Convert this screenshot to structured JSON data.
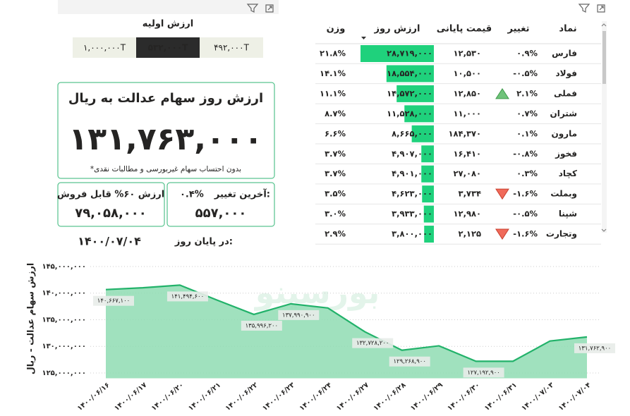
{
  "initial_value": {
    "title": "ارزش اولیه",
    "options": [
      "۱,۰۰۰,۰۰۰T",
      "۵۳۲,۰۰۰T",
      "۴۹۲,۰۰۰T"
    ],
    "selected": 1
  },
  "value_card": {
    "title": "ارزش روز سهام عدالت به ریال",
    "value": "۱۳۱,۷۶۳,۰۰۰",
    "note": "*بدون احتساب سهام غیربورسی و مطالبات نقدی"
  },
  "sellable_card": {
    "title": "ارزش ۶۰% قابل فروش",
    "value": "۷۹,۰۵۸,۰۰۰"
  },
  "change_card": {
    "title": "آخرین تغییر:",
    "change": "۰.۴%",
    "value": "۵۵۷,۰۰۰"
  },
  "end_of_day": {
    "label": "در پایان روز:",
    "date": "۱۴۰۰/۰۷/۰۴"
  },
  "table": {
    "headers": {
      "symbol": "نماد",
      "change": "تغییر",
      "price": "قیمت پایانی",
      "value": "ارزش روز",
      "weight": "وزن"
    },
    "bar_color": "#1fd17c",
    "rows": [
      {
        "symbol": "فارس",
        "change": "۰.۹%",
        "price": "۱۲,۵۳۰",
        "value": 28719000,
        "value_label": "۲۸,۷۱۹,۰۰۰",
        "weight": "۲۱.۸%"
      },
      {
        "symbol": "فولاد",
        "change": "-۰.۵%",
        "price": "۱۰,۵۰۰",
        "value": 18554000,
        "value_label": "۱۸,۵۵۴,۰۰۰",
        "weight": "۱۴.۱%"
      },
      {
        "symbol": "فملی",
        "change": "۲.۱%",
        "price": "۱۲,۸۵۰",
        "value": 14572000,
        "value_label": "۱۴,۵۷۲,۰۰۰",
        "weight": "۱۱.۱%",
        "trend": "up"
      },
      {
        "symbol": "شتران",
        "change": "۰.۷%",
        "price": "۱۱,۰۰۰",
        "value": 11528000,
        "value_label": "۱۱,۵۲۸,۰۰۰",
        "weight": "۸.۷%"
      },
      {
        "symbol": "مارون",
        "change": "۰.۱%",
        "price": "۱۸۴,۳۷۰",
        "value": 8665000,
        "value_label": "۸,۶۶۵,۰۰۰",
        "weight": "۶.۶%"
      },
      {
        "symbol": "فخوز",
        "change": "-۰.۸%",
        "price": "۱۶,۴۱۰",
        "value": 4907000,
        "value_label": "۴,۹۰۷,۰۰۰",
        "weight": "۳.۷%"
      },
      {
        "symbol": "کچاد",
        "change": "۰.۳%",
        "price": "۲۷,۰۸۰",
        "value": 4901000,
        "value_label": "۴,۹۰۱,۰۰۰",
        "weight": "۳.۷%"
      },
      {
        "symbol": "وبملت",
        "change": "-۱.۶%",
        "price": "۳,۷۳۴",
        "value": 4623000,
        "value_label": "۴,۶۲۳,۰۰۰",
        "weight": "۳.۵%",
        "trend": "down"
      },
      {
        "symbol": "شپنا",
        "change": "-۰.۵%",
        "price": "۱۲,۹۸۰",
        "value": 3933000,
        "value_label": "۳,۹۳۳,۰۰۰",
        "weight": "۳.۰%"
      },
      {
        "symbol": "وتجارت",
        "change": "-۱.۶%",
        "price": "۲,۱۲۵",
        "value": 3800000,
        "value_label": "۳,۸۰۰,۰۰۰",
        "weight": "۲.۹%",
        "trend": "down"
      }
    ]
  },
  "chart_data": {
    "type": "area",
    "y_label": "ارزش سهام عدالت - ریال",
    "watermark": "بورسینو",
    "categories": [
      "۱۴۰۰/۰۶/۱۶",
      "۱۴۰۰/۰۶/۱۷",
      "۱۴۰۰/۰۶/۲۰",
      "۱۴۰۰/۰۶/۲۱",
      "۱۴۰۰/۰۶/۲۲",
      "۱۴۰۰/۰۶/۲۳",
      "۱۴۰۰/۰۶/۲۴",
      "۱۴۰۰/۰۶/۲۷",
      "۱۴۰۰/۰۶/۲۸",
      "۱۴۰۰/۰۶/۲۹",
      "۱۴۰۰/۰۶/۳۰",
      "۱۴۰۰/۰۶/۳۱",
      "۱۴۰۰/۰۷/۰۳",
      "۱۴۰۰/۰۷/۰۴"
    ],
    "values": [
      140667100,
      141000000,
      141494600,
      138700000,
      135996200,
      137990900,
      137200000,
      132728200,
      129268900,
      130100000,
      127192900,
      127200000,
      131000000,
      131762900
    ],
    "value_labels": [
      "۱۴۰,۶۶۷,۱۰۰",
      null,
      "۱۴۱,۴۹۴,۶۰۰",
      null,
      "۱۳۵,۹۹۶,۲۰۰",
      "۱۳۷,۹۹۰,۹۰۰",
      null,
      "۱۳۲,۷۲۸,۲۰۰",
      "۱۲۹,۲۶۸,۹۰۰",
      null,
      "۱۲۷,۱۹۲,۹۰۰",
      null,
      null,
      "۱۳۱,۷۶۲,۹۰۰"
    ],
    "ylim": [
      124000000,
      146000000
    ],
    "yticks": [
      {
        "value": 125000000,
        "label": "۱۲۵,۰۰۰,۰۰۰"
      },
      {
        "value": 130000000,
        "label": "۱۳۰,۰۰۰,۰۰۰"
      },
      {
        "value": 135000000,
        "label": "۱۳۵,۰۰۰,۰۰۰"
      },
      {
        "value": 140000000,
        "label": "۱۴۰,۰۰۰,۰۰۰"
      },
      {
        "value": 145000000,
        "label": "۱۴۵,۰۰۰,۰۰۰"
      }
    ],
    "grid": true,
    "color": "#22b26a",
    "fill": "#8fdcb3"
  }
}
